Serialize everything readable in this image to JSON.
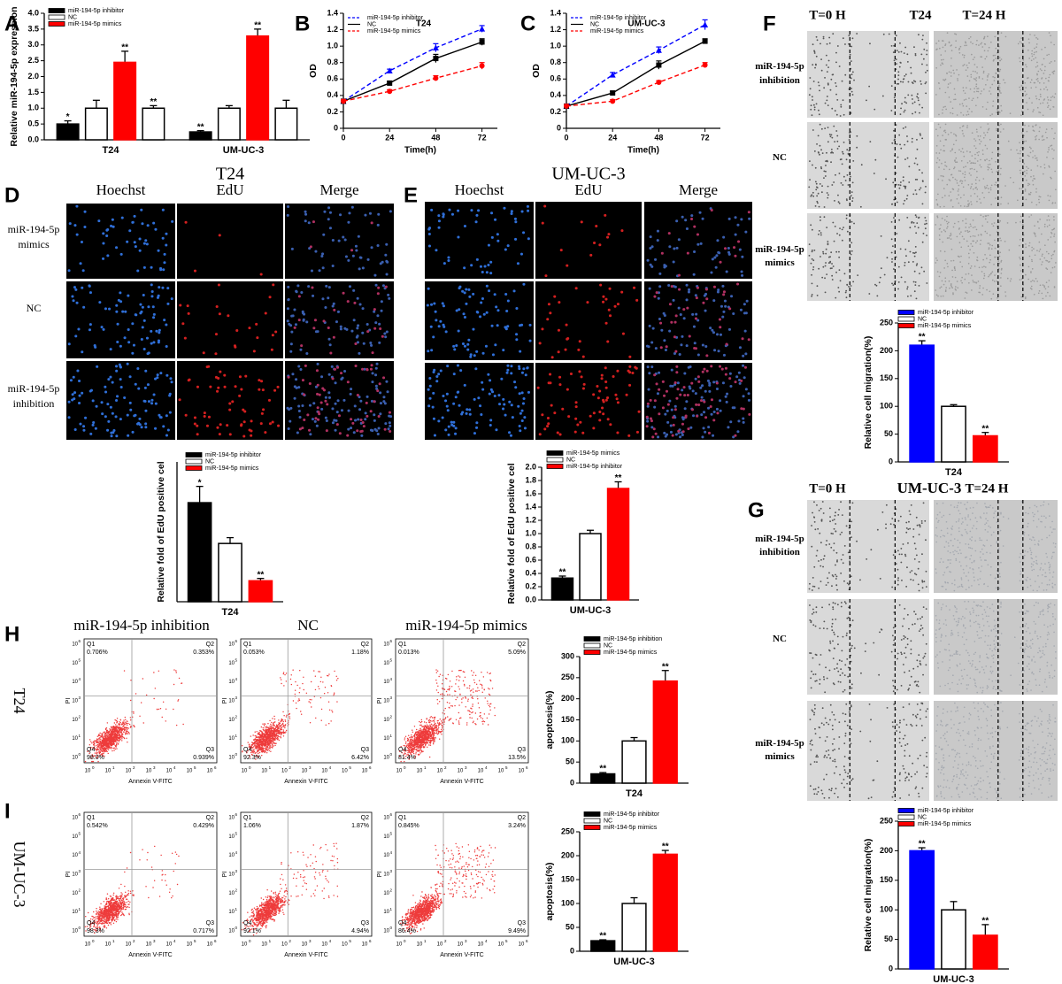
{
  "panel_letters": [
    "A",
    "B",
    "C",
    "D",
    "E",
    "F",
    "G",
    "H",
    "I"
  ],
  "chart_data": [
    {
      "type": "bar",
      "ylabel": "Relative miR-194-5p expression",
      "categories": [
        "T24",
        "UM-UC-3"
      ],
      "ylim": [
        0,
        4.0
      ],
      "yticks": [
        {
          "value": 0,
          "label": "0.0"
        },
        0.5,
        {
          "value": 1,
          "label": "1.0"
        },
        1.5,
        {
          "value": 2,
          "label": "2.0"
        },
        2.5,
        {
          "value": 3,
          "label": "3.0"
        },
        3.5,
        {
          "value": 4,
          "label": "4.0"
        }
      ],
      "series": [
        {
          "name": "miR-194-5p inhibitor",
          "color": "#000000",
          "values": [
            0.5,
            0.25
          ],
          "errors": [
            0.1,
            0.04
          ],
          "annotations": [
            "*",
            "**"
          ]
        },
        {
          "name": "NC",
          "color": "#ffffff",
          "values": [
            1.0,
            1.0
          ],
          "errors": [
            0.25,
            0.08
          ],
          "annotations": [
            null,
            null
          ]
        },
        {
          "name": "miR-194-5p mimics",
          "color": "#ff0000",
          "values": [
            2.45,
            3.28
          ],
          "errors": [
            0.35,
            0.22
          ],
          "annotations": [
            "**",
            "**"
          ]
        },
        {
          "color": "#ffffff",
          "values": [
            1.0,
            1.0
          ],
          "errors": [
            0.08,
            0.25
          ],
          "annotations": [
            "**",
            null
          ]
        }
      ]
    },
    {
      "type": "line",
      "title": "T24",
      "xlabel": "Time(h)",
      "ylabel": "OD",
      "x": [
        0,
        24,
        48,
        72
      ],
      "xlim": [
        0,
        80
      ],
      "xticks": [
        0,
        24,
        48,
        72
      ],
      "ylim": [
        0,
        1.4
      ],
      "yticks": [
        0,
        0.2,
        0.4,
        0.6,
        0.8,
        {
          "value": 1,
          "label": "1.0"
        },
        1.2,
        1.4
      ],
      "series": [
        {
          "name": "miR-194-5p inhibitor",
          "color": "#0000ff",
          "marker": "triangle",
          "dashed": true,
          "values": [
            0.33,
            0.7,
            0.98,
            1.21
          ],
          "errors": [
            0.02,
            0.02,
            0.05,
            0.04
          ]
        },
        {
          "name": "NC",
          "color": "#000000",
          "marker": "square",
          "dashed": false,
          "values": [
            0.33,
            0.55,
            0.85,
            1.05
          ],
          "errors": [
            0.02,
            0.02,
            0.05,
            0.04
          ]
        },
        {
          "name": "miR-194-5p mimics",
          "color": "#ff0000",
          "marker": "circle",
          "dashed": true,
          "values": [
            0.33,
            0.45,
            0.61,
            0.76
          ],
          "errors": [
            0.02,
            0.02,
            0.03,
            0.04
          ]
        }
      ]
    },
    {
      "type": "line",
      "title": "UM-UC-3",
      "xlabel": "Time(h)",
      "ylabel": "OD",
      "x": [
        0,
        24,
        48,
        72
      ],
      "xlim": [
        0,
        80
      ],
      "xticks": [
        0,
        24,
        48,
        72
      ],
      "ylim": [
        0,
        1.4
      ],
      "yticks": [
        0,
        0.2,
        0.4,
        0.6,
        0.8,
        {
          "value": 1,
          "label": "1.0"
        },
        1.2,
        1.4
      ],
      "series": [
        {
          "name": "miR-194-5p inhibitor",
          "color": "#0000ff",
          "marker": "triangle",
          "dashed": true,
          "values": [
            0.27,
            0.65,
            0.95,
            1.26
          ],
          "errors": [
            0.02,
            0.03,
            0.04,
            0.06
          ]
        },
        {
          "name": "NC",
          "color": "#000000",
          "marker": "square",
          "dashed": false,
          "values": [
            0.27,
            0.43,
            0.77,
            1.06
          ],
          "errors": [
            0.02,
            0.02,
            0.05,
            0.03
          ]
        },
        {
          "name": "miR-194-5p mimics",
          "color": "#ff0000",
          "marker": "circle",
          "dashed": true,
          "values": [
            0.27,
            0.33,
            0.56,
            0.77
          ],
          "errors": [
            0.02,
            0.02,
            0.02,
            0.03
          ]
        }
      ]
    },
    {
      "type": "bar",
      "ylabel": "Relative fold of EdU positive cel",
      "categories": [
        "T24"
      ],
      "ylim": [
        0,
        2.4
      ],
      "series": [
        {
          "name": "miR-194-5p inhibitor",
          "color": "#000000",
          "values": [
            1.7
          ],
          "errors": [
            0.28
          ],
          "annotations": [
            "*"
          ]
        },
        {
          "name": "NC",
          "color": "#ffffff",
          "values": [
            1.0
          ],
          "errors": [
            0.1
          ],
          "annotations": [
            null
          ]
        },
        {
          "name": "miR-194-5p mimics",
          "color": "#ff0000",
          "values": [
            0.36
          ],
          "errors": [
            0.04
          ],
          "annotations": [
            "**"
          ]
        }
      ]
    },
    {
      "type": "bar",
      "ylabel": "Relative fold of EdU positive cel",
      "categories": [
        "UM-UC-3"
      ],
      "ylim": [
        0,
        2.0
      ],
      "yticks": [
        {
          "value": 0,
          "label": "0.0"
        },
        0.2,
        0.4,
        0.6,
        0.8,
        {
          "value": 1,
          "label": "1.0"
        },
        1.2,
        1.4,
        1.6,
        1.8,
        {
          "value": 2,
          "label": "2.0"
        }
      ],
      "series": [
        {
          "name": "miR-194-5p mimics",
          "color": "#000000",
          "values": [
            0.33
          ],
          "errors": [
            0.03
          ],
          "annotations": [
            "**"
          ]
        },
        {
          "name": "NC",
          "color": "#ffffff",
          "values": [
            1.0
          ],
          "errors": [
            0.05
          ],
          "annotations": [
            null
          ]
        },
        {
          "name": "miR-194-5p inhibitor",
          "color": "#ff0000",
          "values": [
            1.68
          ],
          "errors": [
            0.1
          ],
          "annotations": [
            "**"
          ]
        }
      ]
    },
    {
      "type": "bar",
      "ylabel": "Relative cell migration(%)",
      "categories": [
        "T24"
      ],
      "ylim": [
        0,
        250
      ],
      "yticks": [
        0,
        50,
        100,
        150,
        200,
        250
      ],
      "series": [
        {
          "name": "miR-194-5p inhibitor",
          "color": "#0000ff",
          "values": [
            210
          ],
          "errors": [
            8
          ],
          "annotations": [
            "**"
          ]
        },
        {
          "name": "NC",
          "color": "#ffffff",
          "values": [
            100
          ],
          "errors": [
            3
          ],
          "annotations": [
            null
          ]
        },
        {
          "name": "miR-194-5p mimics",
          "color": "#ff0000",
          "values": [
            47
          ],
          "errors": [
            6
          ],
          "annotations": [
            "**"
          ]
        }
      ]
    },
    {
      "type": "bar",
      "ylabel": "Relative cell migration(%)",
      "categories": [
        "UM-UC-3"
      ],
      "ylim": [
        0,
        250
      ],
      "yticks": [
        0,
        50,
        100,
        150,
        200,
        250
      ],
      "series": [
        {
          "name": "miR-194-5p inhibitor",
          "color": "#0000ff",
          "values": [
            200
          ],
          "errors": [
            5
          ],
          "annotations": [
            "**"
          ]
        },
        {
          "name": "NC",
          "color": "#ffffff",
          "values": [
            100
          ],
          "errors": [
            14
          ],
          "annotations": [
            null
          ]
        },
        {
          "name": "miR-194-5p mimics",
          "color": "#ff0000",
          "values": [
            57
          ],
          "errors": [
            18
          ],
          "annotations": [
            "**"
          ]
        }
      ]
    },
    {
      "type": "bar",
      "ylabel": "apoptosis(%)",
      "categories": [
        "T24"
      ],
      "ylim": [
        0,
        300
      ],
      "yticks": [
        0,
        50,
        100,
        150,
        200,
        250,
        300
      ],
      "series": [
        {
          "name": "miR-194-5p inhibition",
          "color": "#000000",
          "values": [
            22
          ],
          "errors": [
            3
          ],
          "annotations": [
            "**"
          ]
        },
        {
          "name": "NC",
          "color": "#ffffff",
          "values": [
            100
          ],
          "errors": [
            8
          ],
          "annotations": [
            null
          ]
        },
        {
          "name": "miR-194-5p mimics",
          "color": "#ff0000",
          "values": [
            242
          ],
          "errors": [
            25
          ],
          "annotations": [
            "**"
          ]
        }
      ]
    },
    {
      "type": "bar",
      "ylabel": "apoptosis(%)",
      "categories": [
        "UM-UC-3"
      ],
      "ylim": [
        0,
        250
      ],
      "yticks": [
        0,
        50,
        100,
        150,
        200,
        250
      ],
      "series": [
        {
          "name": "miR-194-5p inhibitor",
          "color": "#000000",
          "values": [
            22
          ],
          "errors": [
            2
          ],
          "annotations": [
            "**"
          ]
        },
        {
          "name": "NC",
          "color": "#ffffff",
          "values": [
            100
          ],
          "errors": [
            12
          ],
          "annotations": [
            null
          ]
        },
        {
          "name": "miR-194-5p mimics",
          "color": "#ff0000",
          "values": [
            203
          ],
          "errors": [
            8
          ],
          "annotations": [
            "**"
          ]
        }
      ]
    }
  ],
  "edu_panels": [
    {
      "title": "T24",
      "columns": [
        "Hoechst",
        "EdU",
        "Merge"
      ],
      "rows": [
        "miR-194-5p mimics",
        "NC",
        "miR-194-5p inhibition"
      ]
    },
    {
      "title": "UM-UC-3",
      "columns": [
        "Hoechst",
        "EdU",
        "Merge"
      ]
    }
  ],
  "scratch_panels": [
    {
      "headers": [
        "T=0 H",
        "T24",
        "T=24 H"
      ],
      "rows": [
        "miR-194-5p inhibition",
        "NC",
        "miR-194-5p mimics"
      ]
    },
    {
      "headers": [
        "T=0 H",
        "UM-UC-3",
        "T=24 H"
      ],
      "rows": [
        "miR-194-5p inhibition",
        "NC",
        "miR-194-5p mimics"
      ]
    }
  ],
  "flow": {
    "columns": [
      "miR-194-5p inhibition",
      "NC",
      "miR-194-5p mimics"
    ],
    "quadrants": [
      "Q1",
      "Q2",
      "Q3",
      "Q4"
    ],
    "xlabel": "Annexin V-FITC",
    "ylabel": "PI",
    "tick_base": "10",
    "tick_exponents": [
      "0",
      "1",
      "2",
      "3",
      "4",
      "5",
      "6"
    ],
    "rows": [
      {
        "name": "T24",
        "plots": [
          [
            "0.706%",
            "0.353%",
            "0.939%",
            "98.0%"
          ],
          [
            "0.053%",
            "1.18%",
            "6.42%",
            "92.3%"
          ],
          [
            "0.013%",
            "5.09%",
            "13.5%",
            "81.4%"
          ]
        ]
      },
      {
        "name": "UM-UC-3",
        "plots": [
          [
            "0.542%",
            "0.429%",
            "0.717%",
            "98.3%"
          ],
          [
            "1.06%",
            "1.87%",
            "4.94%",
            "92.1%"
          ],
          [
            "0.845%",
            "3.24%",
            "9.49%",
            "86.4%"
          ]
        ]
      }
    ]
  }
}
